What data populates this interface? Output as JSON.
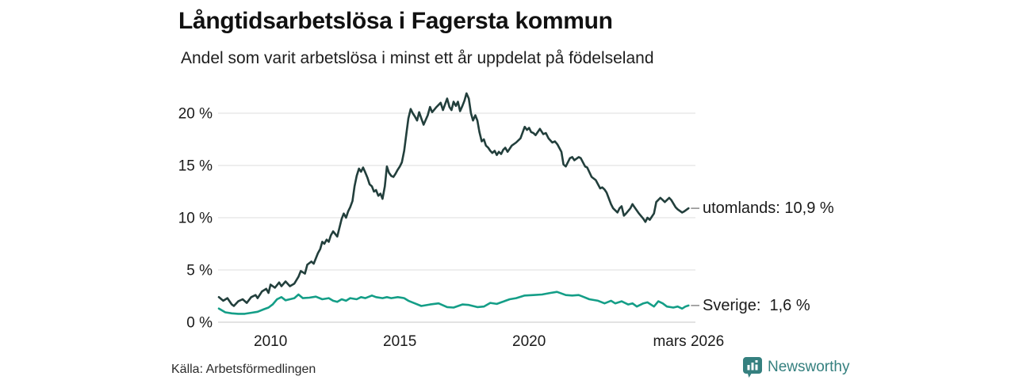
{
  "header": {
    "title": "Långtidsarbetslösa i Fagersta kommun",
    "subtitle": "Andel som varit arbetslösa i minst ett år uppdelat på födelseland"
  },
  "footer": {
    "source": "Källa: Arbetsförmedlingen",
    "brand": "Newsworthy",
    "brand_color": "#35807f"
  },
  "chart_data": {
    "type": "line",
    "title": "Långtidsarbetslösa i Fagersta kommun",
    "subtitle": "Andel som varit arbetslösa i minst ett år uppdelat på födelseland",
    "xlabel": "",
    "ylabel": "",
    "x_range": [
      2008.0,
      2026.17
    ],
    "ylim": [
      0,
      22
    ],
    "grid": "horizontal",
    "legend_position": "right-end-labels",
    "y_axis": {
      "ticks": [
        {
          "value": 0,
          "label": "0 %"
        },
        {
          "value": 5,
          "label": "5 %"
        },
        {
          "value": 10,
          "label": "10 %"
        },
        {
          "value": 15,
          "label": "15 %"
        },
        {
          "value": 20,
          "label": "20 %"
        }
      ]
    },
    "x_axis": {
      "ticks": [
        {
          "value": 2010,
          "label": "2010"
        },
        {
          "value": 2015,
          "label": "2015"
        },
        {
          "value": 2020,
          "label": "2020"
        },
        {
          "value": 2026.17,
          "label": "mars 2026"
        }
      ]
    },
    "series": [
      {
        "name": "utomlands",
        "color": "#223f3c",
        "end_label": "utomlands: 10,9 %",
        "end_value": "10,9 %",
        "points": [
          [
            2008.0,
            2.4
          ],
          [
            2008.17,
            2.05
          ],
          [
            2008.33,
            2.3
          ],
          [
            2008.5,
            1.7
          ],
          [
            2008.58,
            1.55
          ],
          [
            2008.75,
            2.0
          ],
          [
            2008.92,
            2.2
          ],
          [
            2009.08,
            1.85
          ],
          [
            2009.25,
            2.4
          ],
          [
            2009.42,
            2.6
          ],
          [
            2009.5,
            2.3
          ],
          [
            2009.67,
            2.95
          ],
          [
            2009.83,
            3.2
          ],
          [
            2009.92,
            2.8
          ],
          [
            2010.0,
            3.6
          ],
          [
            2010.17,
            3.3
          ],
          [
            2010.33,
            3.8
          ],
          [
            2010.42,
            3.45
          ],
          [
            2010.58,
            3.9
          ],
          [
            2010.75,
            3.45
          ],
          [
            2010.92,
            3.7
          ],
          [
            2011.08,
            4.35
          ],
          [
            2011.17,
            4.9
          ],
          [
            2011.33,
            4.65
          ],
          [
            2011.42,
            5.5
          ],
          [
            2011.58,
            5.8
          ],
          [
            2011.67,
            5.6
          ],
          [
            2011.83,
            6.6
          ],
          [
            2011.92,
            7.0
          ],
          [
            2012.0,
            7.7
          ],
          [
            2012.08,
            7.5
          ],
          [
            2012.17,
            7.9
          ],
          [
            2012.25,
            7.7
          ],
          [
            2012.33,
            8.3
          ],
          [
            2012.42,
            8.7
          ],
          [
            2012.58,
            8.2
          ],
          [
            2012.75,
            9.9
          ],
          [
            2012.83,
            10.4
          ],
          [
            2012.92,
            10.0
          ],
          [
            2013.0,
            10.6
          ],
          [
            2013.08,
            11.0
          ],
          [
            2013.17,
            11.6
          ],
          [
            2013.25,
            13.0
          ],
          [
            2013.33,
            14.0
          ],
          [
            2013.42,
            14.7
          ],
          [
            2013.5,
            14.4
          ],
          [
            2013.58,
            14.8
          ],
          [
            2013.67,
            14.3
          ],
          [
            2013.75,
            13.8
          ],
          [
            2013.83,
            13.2
          ],
          [
            2013.92,
            13.0
          ],
          [
            2014.0,
            12.5
          ],
          [
            2014.08,
            12.65
          ],
          [
            2014.17,
            12.1
          ],
          [
            2014.25,
            12.3
          ],
          [
            2014.33,
            11.8
          ],
          [
            2014.42,
            13.0
          ],
          [
            2014.5,
            14.9
          ],
          [
            2014.58,
            14.3
          ],
          [
            2014.67,
            14.0
          ],
          [
            2014.75,
            13.9
          ],
          [
            2014.83,
            14.2
          ],
          [
            2014.92,
            14.6
          ],
          [
            2015.0,
            14.9
          ],
          [
            2015.08,
            15.3
          ],
          [
            2015.17,
            16.4
          ],
          [
            2015.25,
            18.0
          ],
          [
            2015.33,
            19.5
          ],
          [
            2015.42,
            20.4
          ],
          [
            2015.5,
            20.0
          ],
          [
            2015.58,
            19.7
          ],
          [
            2015.67,
            19.3
          ],
          [
            2015.75,
            20.1
          ],
          [
            2015.83,
            19.5
          ],
          [
            2015.92,
            18.9
          ],
          [
            2016.08,
            19.8
          ],
          [
            2016.17,
            20.6
          ],
          [
            2016.25,
            20.1
          ],
          [
            2016.42,
            20.6
          ],
          [
            2016.58,
            21.0
          ],
          [
            2016.67,
            20.3
          ],
          [
            2016.83,
            21.4
          ],
          [
            2016.92,
            20.6
          ],
          [
            2017.0,
            20.3
          ],
          [
            2017.08,
            21.1
          ],
          [
            2017.17,
            20.7
          ],
          [
            2017.25,
            21.1
          ],
          [
            2017.33,
            20.2
          ],
          [
            2017.42,
            20.7
          ],
          [
            2017.5,
            21.2
          ],
          [
            2017.58,
            21.9
          ],
          [
            2017.67,
            21.4
          ],
          [
            2017.75,
            20.0
          ],
          [
            2017.83,
            19.3
          ],
          [
            2017.92,
            19.8
          ],
          [
            2018.0,
            19.3
          ],
          [
            2018.08,
            18.2
          ],
          [
            2018.17,
            17.3
          ],
          [
            2018.25,
            17.5
          ],
          [
            2018.33,
            16.9
          ],
          [
            2018.42,
            16.7
          ],
          [
            2018.5,
            16.4
          ],
          [
            2018.58,
            16.2
          ],
          [
            2018.67,
            16.4
          ],
          [
            2018.75,
            16.0
          ],
          [
            2018.83,
            16.3
          ],
          [
            2018.92,
            16.1
          ],
          [
            2019.0,
            16.5
          ],
          [
            2019.08,
            16.7
          ],
          [
            2019.17,
            16.3
          ],
          [
            2019.33,
            16.9
          ],
          [
            2019.5,
            17.2
          ],
          [
            2019.67,
            17.6
          ],
          [
            2019.83,
            18.7
          ],
          [
            2019.92,
            18.4
          ],
          [
            2020.0,
            18.6
          ],
          [
            2020.08,
            18.2
          ],
          [
            2020.17,
            18.1
          ],
          [
            2020.25,
            17.9
          ],
          [
            2020.42,
            18.5
          ],
          [
            2020.55,
            18.0
          ],
          [
            2020.65,
            18.1
          ],
          [
            2020.75,
            17.6
          ],
          [
            2020.9,
            17.2
          ],
          [
            2021.0,
            17.3
          ],
          [
            2021.1,
            17.0
          ],
          [
            2021.25,
            16.3
          ],
          [
            2021.33,
            15.1
          ],
          [
            2021.42,
            14.9
          ],
          [
            2021.58,
            15.7
          ],
          [
            2021.67,
            15.8
          ],
          [
            2021.75,
            15.5
          ],
          [
            2021.92,
            15.8
          ],
          [
            2022.0,
            15.7
          ],
          [
            2022.17,
            14.9
          ],
          [
            2022.25,
            14.8
          ],
          [
            2022.42,
            13.9
          ],
          [
            2022.58,
            13.6
          ],
          [
            2022.75,
            12.8
          ],
          [
            2022.83,
            12.9
          ],
          [
            2022.92,
            12.7
          ],
          [
            2023.0,
            12.4
          ],
          [
            2023.17,
            11.3
          ],
          [
            2023.25,
            10.9
          ],
          [
            2023.42,
            10.5
          ],
          [
            2023.5,
            10.9
          ],
          [
            2023.58,
            11.1
          ],
          [
            2023.67,
            10.2
          ],
          [
            2023.75,
            10.4
          ],
          [
            2023.92,
            10.9
          ],
          [
            2024.0,
            11.3
          ],
          [
            2024.08,
            11.0
          ],
          [
            2024.25,
            10.4
          ],
          [
            2024.42,
            9.9
          ],
          [
            2024.5,
            9.6
          ],
          [
            2024.58,
            10.0
          ],
          [
            2024.67,
            9.8
          ],
          [
            2024.83,
            10.4
          ],
          [
            2024.92,
            11.5
          ],
          [
            2025.08,
            11.9
          ],
          [
            2025.17,
            11.7
          ],
          [
            2025.25,
            11.5
          ],
          [
            2025.42,
            11.9
          ],
          [
            2025.5,
            11.7
          ],
          [
            2025.67,
            11.0
          ],
          [
            2025.75,
            10.8
          ],
          [
            2025.92,
            10.5
          ],
          [
            2026.0,
            10.6
          ],
          [
            2026.17,
            10.9
          ]
        ]
      },
      {
        "name": "Sverige",
        "color": "#149e87",
        "end_label": "Sverige:  1,6 %",
        "end_value": "1,6 %",
        "points": [
          [
            2008.0,
            1.3
          ],
          [
            2008.25,
            0.95
          ],
          [
            2008.5,
            0.85
          ],
          [
            2008.75,
            0.8
          ],
          [
            2009.0,
            0.8
          ],
          [
            2009.25,
            0.9
          ],
          [
            2009.5,
            1.0
          ],
          [
            2009.75,
            1.25
          ],
          [
            2009.92,
            1.4
          ],
          [
            2010.08,
            1.7
          ],
          [
            2010.25,
            2.2
          ],
          [
            2010.42,
            2.4
          ],
          [
            2010.58,
            2.1
          ],
          [
            2010.75,
            2.2
          ],
          [
            2010.92,
            2.3
          ],
          [
            2011.08,
            2.65
          ],
          [
            2011.25,
            2.3
          ],
          [
            2011.5,
            2.35
          ],
          [
            2011.75,
            2.45
          ],
          [
            2012.0,
            2.2
          ],
          [
            2012.25,
            2.3
          ],
          [
            2012.42,
            2.05
          ],
          [
            2012.58,
            1.95
          ],
          [
            2012.75,
            2.2
          ],
          [
            2012.92,
            2.05
          ],
          [
            2013.08,
            2.3
          ],
          [
            2013.33,
            2.2
          ],
          [
            2013.5,
            2.4
          ],
          [
            2013.67,
            2.3
          ],
          [
            2013.92,
            2.55
          ],
          [
            2014.08,
            2.4
          ],
          [
            2014.33,
            2.3
          ],
          [
            2014.5,
            2.4
          ],
          [
            2014.67,
            2.3
          ],
          [
            2014.92,
            2.4
          ],
          [
            2015.17,
            2.3
          ],
          [
            2015.33,
            2.05
          ],
          [
            2015.58,
            1.8
          ],
          [
            2015.83,
            1.55
          ],
          [
            2016.17,
            1.7
          ],
          [
            2016.5,
            1.8
          ],
          [
            2016.83,
            1.45
          ],
          [
            2017.08,
            1.4
          ],
          [
            2017.42,
            1.7
          ],
          [
            2017.67,
            1.65
          ],
          [
            2018.0,
            1.45
          ],
          [
            2018.25,
            1.5
          ],
          [
            2018.5,
            1.85
          ],
          [
            2018.75,
            1.75
          ],
          [
            2018.92,
            1.9
          ],
          [
            2019.25,
            2.2
          ],
          [
            2019.5,
            2.3
          ],
          [
            2019.83,
            2.55
          ],
          [
            2020.17,
            2.6
          ],
          [
            2020.5,
            2.65
          ],
          [
            2020.83,
            2.8
          ],
          [
            2021.08,
            2.9
          ],
          [
            2021.25,
            2.75
          ],
          [
            2021.42,
            2.6
          ],
          [
            2021.67,
            2.55
          ],
          [
            2021.92,
            2.6
          ],
          [
            2022.08,
            2.45
          ],
          [
            2022.33,
            2.2
          ],
          [
            2022.67,
            2.05
          ],
          [
            2022.92,
            1.8
          ],
          [
            2023.17,
            2.05
          ],
          [
            2023.33,
            1.8
          ],
          [
            2023.58,
            2.0
          ],
          [
            2023.83,
            1.7
          ],
          [
            2024.0,
            1.8
          ],
          [
            2024.17,
            1.5
          ],
          [
            2024.42,
            1.8
          ],
          [
            2024.58,
            1.9
          ],
          [
            2024.83,
            1.5
          ],
          [
            2025.0,
            2.0
          ],
          [
            2025.17,
            1.8
          ],
          [
            2025.33,
            1.5
          ],
          [
            2025.58,
            1.4
          ],
          [
            2025.75,
            1.5
          ],
          [
            2025.92,
            1.3
          ],
          [
            2026.05,
            1.5
          ],
          [
            2026.17,
            1.6
          ]
        ]
      }
    ]
  }
}
